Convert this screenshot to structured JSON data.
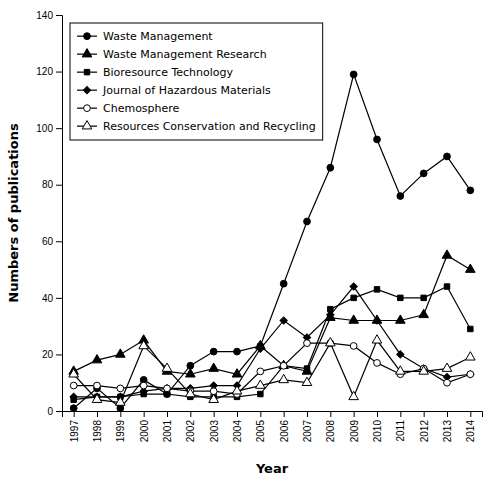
{
  "chart_data": {
    "type": "line",
    "x": [
      1997,
      1998,
      1999,
      2000,
      2001,
      2002,
      2003,
      2004,
      2005,
      2006,
      2007,
      2008,
      2009,
      2010,
      2011,
      2012,
      2013,
      2014
    ],
    "xlim": [
      1996.5,
      2014.5
    ],
    "xticks": [
      1997,
      1998,
      1999,
      2000,
      2001,
      2002,
      2003,
      2004,
      2005,
      2006,
      2007,
      2008,
      2009,
      2010,
      2011,
      2012,
      2013,
      2014
    ],
    "ylim": [
      0,
      140
    ],
    "yticks": [
      0,
      20,
      40,
      60,
      80,
      100,
      120,
      140
    ],
    "xlabel": "Year",
    "ylabel": "Numbers of publications",
    "grid": false,
    "legend": "upper left",
    "series": [
      {
        "name": "Waste Management",
        "color": "black",
        "marker": "circle",
        "values": [
          1,
          8,
          1,
          11,
          6,
          16,
          21,
          21,
          23,
          45,
          67,
          86,
          119,
          96,
          76,
          84,
          90,
          78
        ]
      },
      {
        "name": "Waste Management Research",
        "color": "black",
        "marker": "triangle",
        "values": [
          14,
          18,
          20,
          25,
          14,
          13,
          15,
          13,
          23,
          16,
          14,
          33,
          32,
          32,
          32,
          34,
          55,
          50
        ]
      },
      {
        "name": "Bioresource Technology",
        "color": "black",
        "marker": "square",
        "values": [
          4,
          5,
          5,
          6,
          6,
          5,
          5,
          5,
          6,
          16,
          15,
          36,
          40,
          43,
          40,
          40,
          44,
          29
        ]
      },
      {
        "name": "Journal of Hazardous Materials",
        "color": "black",
        "marker": "diamond",
        "values": [
          5,
          5,
          5,
          7,
          8,
          8,
          9,
          9,
          22,
          32,
          26,
          34,
          44,
          32,
          20,
          15,
          12,
          13
        ]
      },
      {
        "name": "Chemosphere",
        "color": "black",
        "marker": "open-circle",
        "values": [
          9,
          9,
          8,
          9,
          8,
          7,
          7,
          6,
          14,
          16,
          24,
          24,
          23,
          17,
          13,
          15,
          10,
          13
        ]
      },
      {
        "name": "Resources Conservation and Recycling",
        "color": "black",
        "marker": "open-triangle",
        "values": [
          13,
          4,
          3,
          23,
          15,
          6,
          4,
          7,
          9,
          11,
          10,
          24,
          5,
          25,
          14,
          14,
          15,
          19
        ]
      }
    ]
  }
}
